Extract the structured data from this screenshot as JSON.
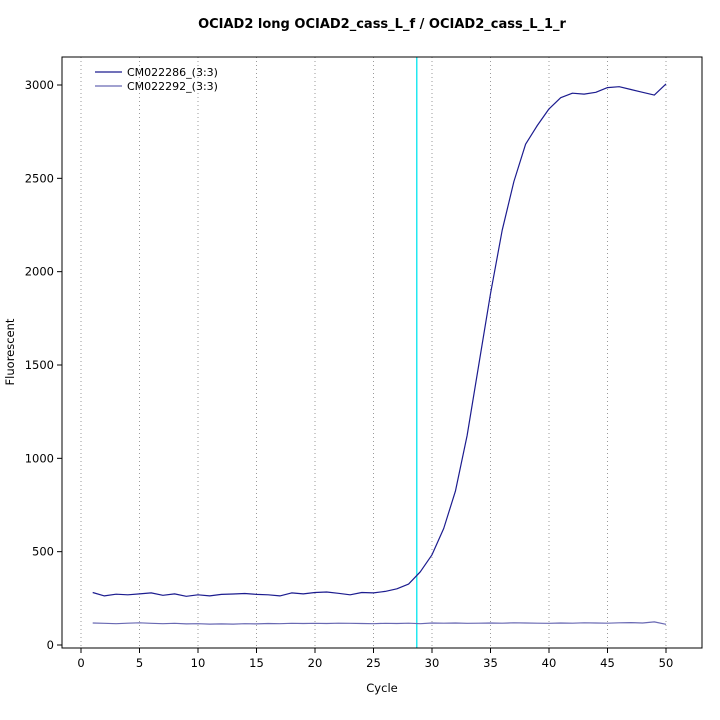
{
  "title": "OCIAD2 long OCIAD2_cass_L_f / OCIAD2_cass_L_1_r",
  "chart_data": {
    "type": "line",
    "title": "OCIAD2 long OCIAD2_cass_L_f / OCIAD2_cass_L_1_r",
    "xlabel": "Cycle",
    "ylabel": "Fluorescent",
    "xlim": [
      0,
      50
    ],
    "ylim": [
      0,
      3000
    ],
    "x_ticks": [
      0,
      5,
      10,
      15,
      20,
      25,
      30,
      35,
      40,
      45,
      50
    ],
    "y_ticks": [
      0,
      500,
      1000,
      1500,
      2000,
      2500,
      3000
    ],
    "grid": "vertical-dotted",
    "grid_color": "#9a9a9a",
    "legend_position": "top-left",
    "threshold_line": {
      "x": 28.7,
      "color": "#00e5ee"
    },
    "x": [
      1,
      2,
      3,
      4,
      5,
      6,
      7,
      8,
      9,
      10,
      11,
      12,
      13,
      14,
      15,
      16,
      17,
      18,
      19,
      20,
      21,
      22,
      23,
      24,
      25,
      26,
      27,
      28,
      29,
      30,
      31,
      32,
      33,
      34,
      35,
      36,
      37,
      38,
      39,
      40,
      41,
      42,
      43,
      44,
      45,
      46,
      47,
      48,
      49,
      50
    ],
    "series": [
      {
        "name": "CM022286_(3:3)",
        "color": "#1c1c8f",
        "values": [
          281,
          263,
          272,
          269,
          274,
          279,
          266,
          274,
          261,
          269,
          263,
          271,
          273,
          276,
          271,
          269,
          263,
          279,
          274,
          281,
          284,
          277,
          269,
          281,
          279,
          287,
          301,
          326,
          392,
          483,
          624,
          824,
          1122,
          1502,
          1882,
          2222,
          2483,
          2683,
          2783,
          2872,
          2932,
          2956,
          2951,
          2961,
          2986,
          2991,
          2976,
          2961,
          2946,
          3006
        ]
      },
      {
        "name": "CM022292_(3:3)",
        "color": "#6969b3",
        "values": [
          118,
          116,
          114,
          117,
          119,
          116,
          114,
          116,
          113,
          114,
          112,
          113,
          112,
          114,
          113,
          115,
          114,
          116,
          115,
          116,
          115,
          117,
          116,
          115,
          114,
          116,
          115,
          117,
          114,
          118,
          117,
          118,
          116,
          117,
          118,
          117,
          119,
          118,
          117,
          116,
          118,
          117,
          119,
          118,
          117,
          119,
          120,
          118,
          124,
          111
        ]
      }
    ]
  }
}
